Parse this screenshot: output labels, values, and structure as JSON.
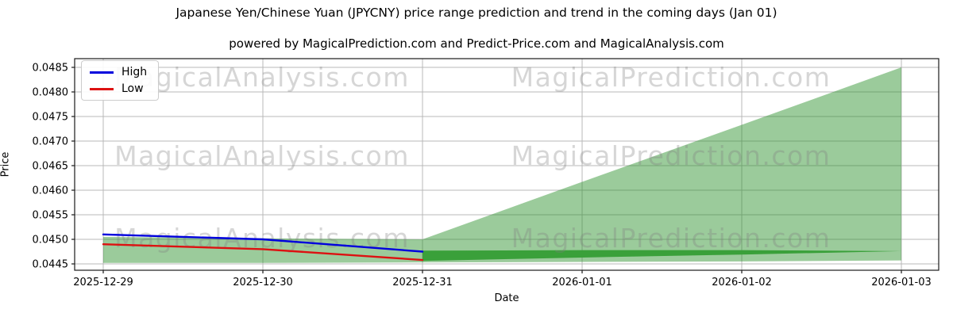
{
  "title": "Japanese Yen/Chinese Yuan (JPYCNY) price range prediction and trend in the coming days (Jan 01)",
  "subtitle": "powered by MagicalPrediction.com and Predict-Price.com and MagicalAnalysis.com",
  "watermarks": {
    "left_text": "MagicalAnalysis.com",
    "right_text": "MagicalPrediction.com",
    "color": "#808080",
    "opacity": 0.32
  },
  "legend": {
    "items": [
      {
        "label": "High",
        "color": "#0000dd"
      },
      {
        "label": "Low",
        "color": "#dd1111"
      }
    ]
  },
  "colors": {
    "grid": "#b8b8b8",
    "spine": "#1a1a1a",
    "tick": "#1a1a1a"
  },
  "chart_data": {
    "type": "line",
    "title": "Japanese Yen/Chinese Yuan (JPYCNY) price range prediction and trend in the coming days (Jan 01)",
    "xlabel": "Date",
    "ylabel": "Price",
    "x": [
      "2025-12-29",
      "2025-12-30",
      "2025-12-31",
      "2026-01-01",
      "2026-01-02",
      "2026-01-03"
    ],
    "y_ticks": [
      "0.0445",
      "0.0450",
      "0.0455",
      "0.0460",
      "0.0465",
      "0.0470",
      "0.0475",
      "0.0480",
      "0.0485"
    ],
    "ylim": [
      0.04425,
      0.0487
    ],
    "grid": true,
    "legend_position": "upper left",
    "series": [
      {
        "name": "High",
        "color": "#0000dd",
        "start_index": 0,
        "values": [
          0.0451,
          0.045,
          0.04475
        ]
      },
      {
        "name": "Low",
        "color": "#dd1111",
        "start_index": 0,
        "values": [
          0.0449,
          0.0448,
          0.04458
        ]
      }
    ],
    "bands": [
      {
        "name": "prediction-range-band",
        "color": "#228B22",
        "opacity": 0.45,
        "start_index": 0,
        "upper": [
          0.04505,
          0.04502,
          0.045,
          0.04617,
          0.04733,
          0.0485
        ],
        "lower": [
          0.04452,
          0.04452,
          0.04453,
          0.04454,
          0.04455,
          0.04457
        ]
      },
      {
        "name": "forecast-trend-band",
        "color": "#3aa03a",
        "opacity": 1,
        "start_index": 2,
        "upper": [
          0.04477,
          0.04478,
          0.04478,
          0.04476
        ],
        "lower": [
          0.04456,
          0.04463,
          0.04469,
          0.04476
        ]
      }
    ]
  }
}
